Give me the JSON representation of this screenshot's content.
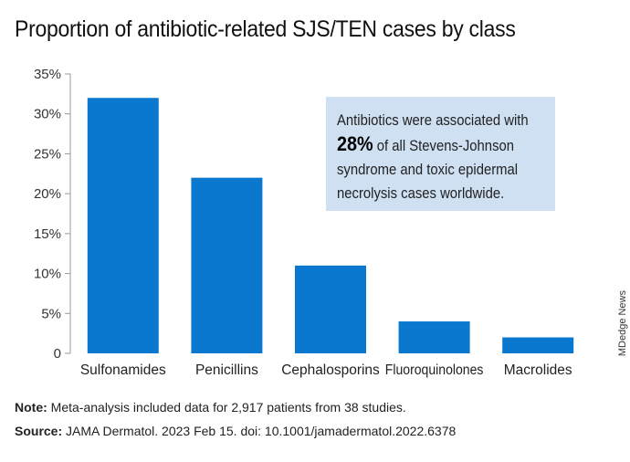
{
  "title": "Proportion of antibiotic-related SJS/TEN cases by class",
  "callout": {
    "line1": "Antibiotics were associated with",
    "highlight": "28%",
    "line2_rest": " of all Stevens-Johnson",
    "line3": "syndrome and toxic epidermal",
    "line4": "necrolysis cases worldwide."
  },
  "credit": "MDedge News",
  "note": {
    "label": "Note:",
    "text": " Meta-analysis included data for 2,917 patients from 38 studies."
  },
  "source": {
    "label": "Source:",
    "text": " JAMA Dermatol. 2023 Feb 15. doi: 10.1001/jamadermatol.2022.6378"
  },
  "colors": {
    "bar": "#0a78cf",
    "axis": "#999999",
    "callout_bg": "#cfe0f3"
  },
  "chart_data": {
    "type": "bar",
    "title": "Proportion of antibiotic-related SJS/TEN cases by class",
    "categories": [
      "Sulfonamides",
      "Penicillins",
      "Cephalosporins",
      "Fluoroquinolones",
      "Macrolides"
    ],
    "values": [
      32,
      22,
      11,
      4,
      2
    ],
    "unit": "%",
    "ylim": [
      0,
      35
    ],
    "yticks": [
      "0",
      "5%",
      "10%",
      "15%",
      "20%",
      "25%",
      "30%",
      "35%"
    ],
    "ytick_values": [
      0,
      5,
      10,
      15,
      20,
      25,
      30,
      35
    ],
    "grid": false
  }
}
